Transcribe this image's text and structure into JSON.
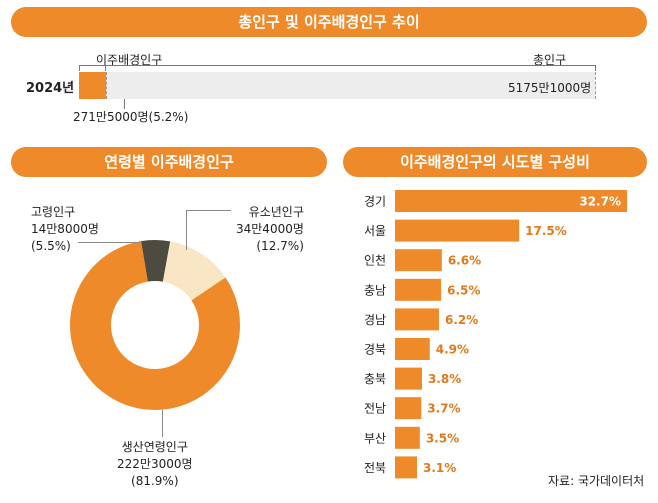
{
  "top": {
    "title": "총인구 및 이주배경인구 추이",
    "year": "2024년",
    "migrant_label": "이주배경인구",
    "total_label": "총인구",
    "total_value": "5175만1000명",
    "migrant_value": "271만5000명(5.2%)"
  },
  "age": {
    "title": "연령별 이주배경인구",
    "elder": {
      "name": "고령인구",
      "count": "14만8000명",
      "pct": "(5.5%)"
    },
    "youth": {
      "name": "유소년인구",
      "count": "34만4000명",
      "pct": "(12.7%)"
    },
    "working": {
      "name": "생산연령인구",
      "count": "222만3000명",
      "pct": "(81.9%)"
    }
  },
  "region": {
    "title": "이주배경인구의 시도별 구성비"
  },
  "source": "자료: 국가데이터처",
  "colors": {
    "accent": "#ee8a2a",
    "youth": "#f8e6c4",
    "elder": "#4d4a40",
    "track": "#ededed",
    "value_text": "#e07a1c"
  },
  "chart_data": [
    {
      "type": "bar",
      "title": "총인구 및 이주배경인구 추이",
      "categories": [
        "2024년"
      ],
      "series": [
        {
          "name": "이주배경인구",
          "values": [
            2715000
          ]
        },
        {
          "name": "총인구",
          "values": [
            51751000
          ]
        }
      ]
    },
    {
      "type": "pie",
      "title": "연령별 이주배경인구",
      "labels": [
        "생산연령인구",
        "유소년인구",
        "고령인구"
      ],
      "values": [
        81.9,
        12.7,
        5.5
      ],
      "counts": [
        "222만3000명",
        "34만4000명",
        "14만8000명"
      ],
      "donut": true
    },
    {
      "type": "bar",
      "title": "이주배경인구의 시도별 구성비",
      "orientation": "horizontal",
      "categories": [
        "경기",
        "서울",
        "인천",
        "충남",
        "경남",
        "경북",
        "충북",
        "전남",
        "부산",
        "전북"
      ],
      "values": [
        32.7,
        17.5,
        6.6,
        6.5,
        6.2,
        4.9,
        3.8,
        3.7,
        3.5,
        3.1
      ],
      "value_labels": [
        "32.7%",
        "17.5%",
        "6.6%",
        "6.5%",
        "6.2%",
        "4.9%",
        "3.8%",
        "3.7%",
        "3.5%",
        "3.1%"
      ]
    }
  ]
}
